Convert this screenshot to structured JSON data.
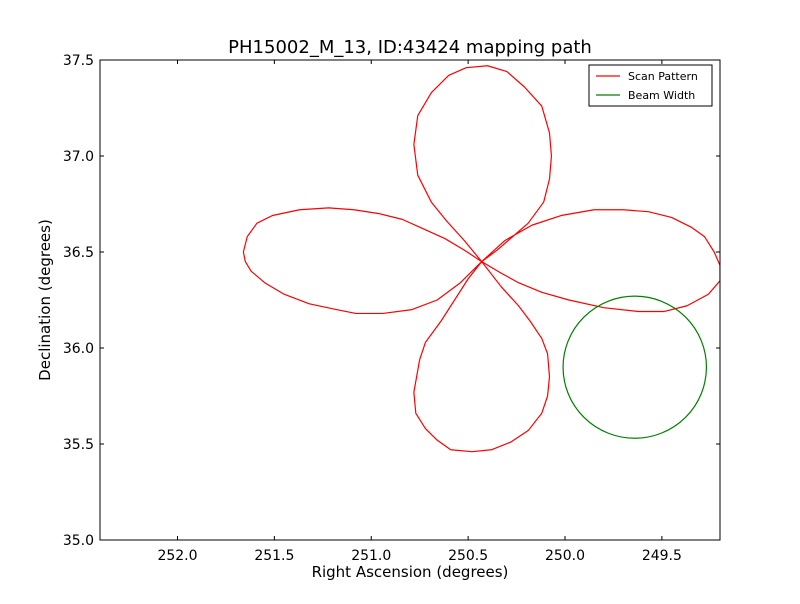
{
  "chart_data": {
    "type": "line",
    "title": "PH15002_M_13, ID:43424 mapping path",
    "xlabel": "Right Ascension (degrees)",
    "ylabel": "Declination (degrees)",
    "xlim": [
      252.4,
      249.2
    ],
    "ylim": [
      35.0,
      37.5
    ],
    "x_inverted": true,
    "grid": false,
    "legend_position": "top-right",
    "xticks": [
      252.0,
      251.5,
      251.0,
      250.5,
      250.0,
      249.5
    ],
    "xtick_labels": [
      "252.0",
      "251.5",
      "251.0",
      "250.5",
      "250.0",
      "249.5"
    ],
    "yticks": [
      35.0,
      35.5,
      36.0,
      36.5,
      37.0,
      37.5
    ],
    "ytick_labels": [
      "35.0",
      "35.5",
      "36.0",
      "36.5",
      "37.0",
      "37.5"
    ],
    "series": [
      {
        "name": "Scan Pattern",
        "color": "#ff0000",
        "kind": "path",
        "x": [
          250.43,
          250.52,
          250.62,
          250.73,
          250.84,
          250.96,
          251.09,
          251.22,
          251.37,
          251.51,
          251.59,
          251.64,
          251.66,
          251.65,
          251.62,
          251.55,
          251.45,
          251.32,
          251.18,
          251.08,
          250.94,
          250.79,
          250.66,
          250.54,
          250.43,
          250.52,
          250.61,
          250.69,
          250.76,
          250.78,
          250.76,
          250.69,
          250.6,
          250.51,
          250.4,
          250.3,
          250.21,
          250.12,
          250.08,
          250.07,
          250.08,
          250.11,
          250.19,
          250.27,
          250.35,
          250.43,
          250.33,
          250.24,
          250.12,
          249.98,
          249.8,
          249.62,
          249.49,
          249.37,
          249.26,
          249.2,
          249.2,
          249.23,
          249.28,
          249.35,
          249.45,
          249.57,
          249.7,
          249.85,
          250.02,
          250.17,
          250.31,
          250.43,
          250.33,
          250.24,
          250.18,
          250.12,
          250.09,
          250.08,
          250.09,
          250.12,
          250.19,
          250.28,
          250.38,
          250.48,
          250.59,
          250.66,
          250.72,
          250.77,
          250.78,
          250.75,
          250.72,
          250.64,
          250.57,
          250.5,
          250.43
        ],
        "y": [
          36.45,
          36.51,
          36.57,
          36.62,
          36.67,
          36.7,
          36.72,
          36.73,
          36.72,
          36.69,
          36.65,
          36.58,
          36.5,
          36.45,
          36.4,
          36.34,
          36.28,
          36.23,
          36.2,
          36.18,
          36.18,
          36.2,
          36.25,
          36.34,
          36.45,
          36.56,
          36.66,
          36.76,
          36.9,
          37.06,
          37.21,
          37.33,
          37.42,
          37.46,
          37.47,
          37.44,
          37.36,
          37.26,
          37.12,
          37.0,
          36.88,
          36.76,
          36.65,
          36.58,
          36.51,
          36.45,
          36.39,
          36.34,
          36.29,
          36.25,
          36.21,
          36.19,
          36.19,
          36.22,
          36.28,
          36.35,
          36.43,
          36.5,
          36.58,
          36.63,
          36.68,
          36.71,
          36.72,
          36.72,
          36.69,
          36.64,
          36.56,
          36.45,
          36.32,
          36.22,
          36.14,
          36.05,
          35.97,
          35.85,
          35.75,
          35.66,
          35.57,
          35.51,
          35.47,
          35.46,
          35.47,
          35.52,
          35.58,
          35.66,
          35.77,
          35.94,
          36.03,
          36.14,
          36.25,
          36.36,
          36.45
        ]
      },
      {
        "name": "Beam Width",
        "color": "#008000",
        "kind": "circle",
        "center_x": 249.64,
        "center_y": 35.9,
        "radius": 0.37
      }
    ]
  }
}
